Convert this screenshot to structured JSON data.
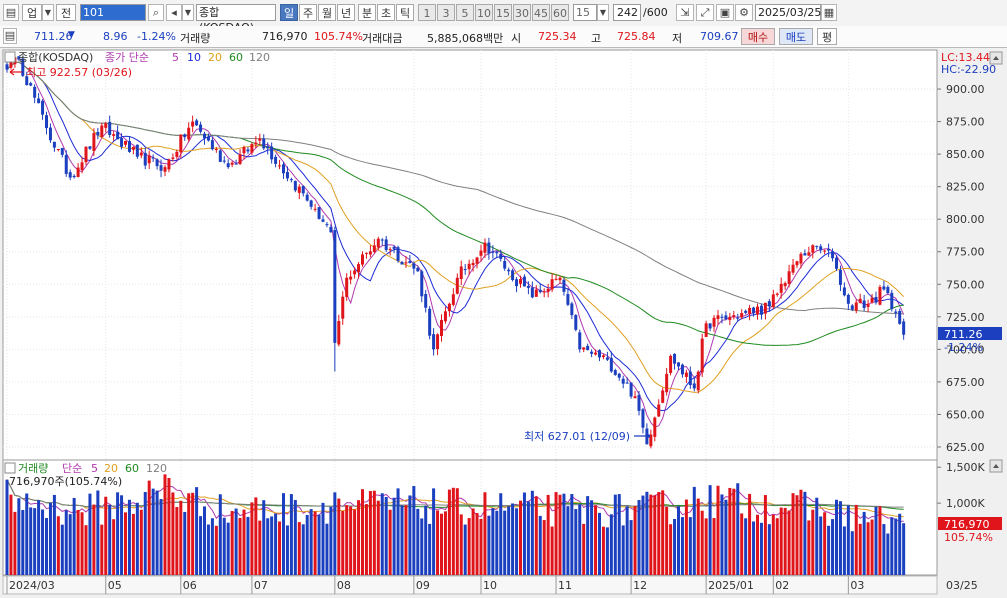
{
  "toolbar": {
    "code": "101",
    "index_name": "종합(KOSDAQ)",
    "left_buttons": [
      "업",
      "전"
    ],
    "periods": [
      "일",
      "주",
      "월",
      "년",
      "분",
      "초",
      "틱"
    ],
    "selected_period": "일",
    "intervals": [
      "1",
      "3",
      "5",
      "10",
      "15",
      "30",
      "45",
      "60"
    ],
    "interval_value": "15",
    "count": "242",
    "count_max": "/600",
    "date": "2025/03/25"
  },
  "quote": {
    "price": "711.26",
    "change": "8.96",
    "change_pct": "-1.24%",
    "volume_label": "거래량",
    "volume": "716,970",
    "volume_pct": "105.74%",
    "amount_label": "거래대금",
    "amount": "5,885,068백만",
    "open_label": "시",
    "open": "725.34",
    "high_label": "고",
    "high": "725.84",
    "low_label": "저",
    "low": "709.67",
    "buy_label": "매수",
    "sell_label": "매도",
    "eval_label": "평"
  },
  "colors": {
    "up": "#e0151b",
    "down": "#1b3fbf",
    "ma5": "#b03ab0",
    "ma10": "#1d2bd6",
    "ma20": "#e0a020",
    "ma60": "#1f8a1f",
    "ma120": "#808080"
  },
  "chart_data": [
    {
      "type": "candlestick",
      "title": "종합(KOSDAQ)",
      "legend": {
        "series_label": "종가 단순",
        "periods": [
          "5",
          "10",
          "20",
          "60",
          "120"
        ],
        "placement": "top-left"
      },
      "ylim": [
        615,
        930
      ],
      "y_ticks": [
        "900.00",
        "875.00",
        "850.00",
        "825.00",
        "800.00",
        "775.00",
        "750.00",
        "725.00",
        "700.00",
        "675.00",
        "650.00",
        "625.00"
      ],
      "lc_label": "LC:13.44",
      "hc_label": "HC:-22.90",
      "last_price": "711.26",
      "last_change": "-1.24%",
      "annotations": {
        "high": "최고 922.57 (03/26)",
        "low": "최저 627.01 (12/09)"
      },
      "anchors": [
        {
          "i": 0,
          "p": 915
        },
        {
          "i": 3,
          "p": 922.57
        },
        {
          "i": 10,
          "p": 870
        },
        {
          "i": 16,
          "p": 832
        },
        {
          "i": 24,
          "p": 872
        },
        {
          "i": 33,
          "p": 848
        },
        {
          "i": 40,
          "p": 840
        },
        {
          "i": 47,
          "p": 875
        },
        {
          "i": 56,
          "p": 840
        },
        {
          "i": 64,
          "p": 862
        },
        {
          "i": 72,
          "p": 830
        },
        {
          "i": 78,
          "p": 808
        },
        {
          "i": 82,
          "p": 790
        },
        {
          "i": 83,
          "p": 705
        },
        {
          "i": 86,
          "p": 755
        },
        {
          "i": 94,
          "p": 785
        },
        {
          "i": 104,
          "p": 760
        },
        {
          "i": 108,
          "p": 700
        },
        {
          "i": 114,
          "p": 755
        },
        {
          "i": 121,
          "p": 782
        },
        {
          "i": 127,
          "p": 760
        },
        {
          "i": 133,
          "p": 740
        },
        {
          "i": 140,
          "p": 755
        },
        {
          "i": 145,
          "p": 700
        },
        {
          "i": 152,
          "p": 692
        },
        {
          "i": 159,
          "p": 664
        },
        {
          "i": 162,
          "p": 627.01
        },
        {
          "i": 168,
          "p": 695
        },
        {
          "i": 174,
          "p": 670
        },
        {
          "i": 177,
          "p": 720
        },
        {
          "i": 187,
          "p": 728
        },
        {
          "i": 193,
          "p": 733
        },
        {
          "i": 199,
          "p": 765
        },
        {
          "i": 204,
          "p": 780
        },
        {
          "i": 209,
          "p": 770
        },
        {
          "i": 213,
          "p": 735
        },
        {
          "i": 218,
          "p": 735
        },
        {
          "i": 222,
          "p": 746
        },
        {
          "i": 225,
          "p": 728
        },
        {
          "i": 227,
          "p": 711.26
        }
      ]
    },
    {
      "type": "bar",
      "title": "거래량",
      "legend": {
        "series_label": "단순",
        "periods": [
          "5",
          "20",
          "60",
          "120"
        ],
        "placement": "top-left"
      },
      "value_label": "716,970주(105.74%)",
      "ylim": [
        0,
        1600
      ],
      "y_ticks": [
        "1,500K",
        "1,000K"
      ],
      "last_volume": "716,970",
      "last_change": "105.74%",
      "volume_anchors": [
        {
          "i": 0,
          "v": 1050
        },
        {
          "i": 20,
          "v": 900
        },
        {
          "i": 40,
          "v": 1150
        },
        {
          "i": 55,
          "v": 880
        },
        {
          "i": 80,
          "v": 950
        },
        {
          "i": 100,
          "v": 980
        },
        {
          "i": 130,
          "v": 930
        },
        {
          "i": 160,
          "v": 900
        },
        {
          "i": 178,
          "v": 1050
        },
        {
          "i": 200,
          "v": 950
        },
        {
          "i": 227,
          "v": 720
        }
      ]
    }
  ],
  "x_axis": {
    "labels": [
      {
        "text": "2024/03",
        "i": 0
      },
      {
        "text": "05",
        "i": 25
      },
      {
        "text": "06",
        "i": 44
      },
      {
        "text": "07",
        "i": 62
      },
      {
        "text": "08",
        "i": 83
      },
      {
        "text": "09",
        "i": 103
      },
      {
        "text": "10",
        "i": 120
      },
      {
        "text": "11",
        "i": 139
      },
      {
        "text": "12",
        "i": 158
      },
      {
        "text": "2025/01",
        "i": 177
      },
      {
        "text": "02",
        "i": 194
      },
      {
        "text": "03",
        "i": 213
      }
    ],
    "right_label": "03/25"
  }
}
